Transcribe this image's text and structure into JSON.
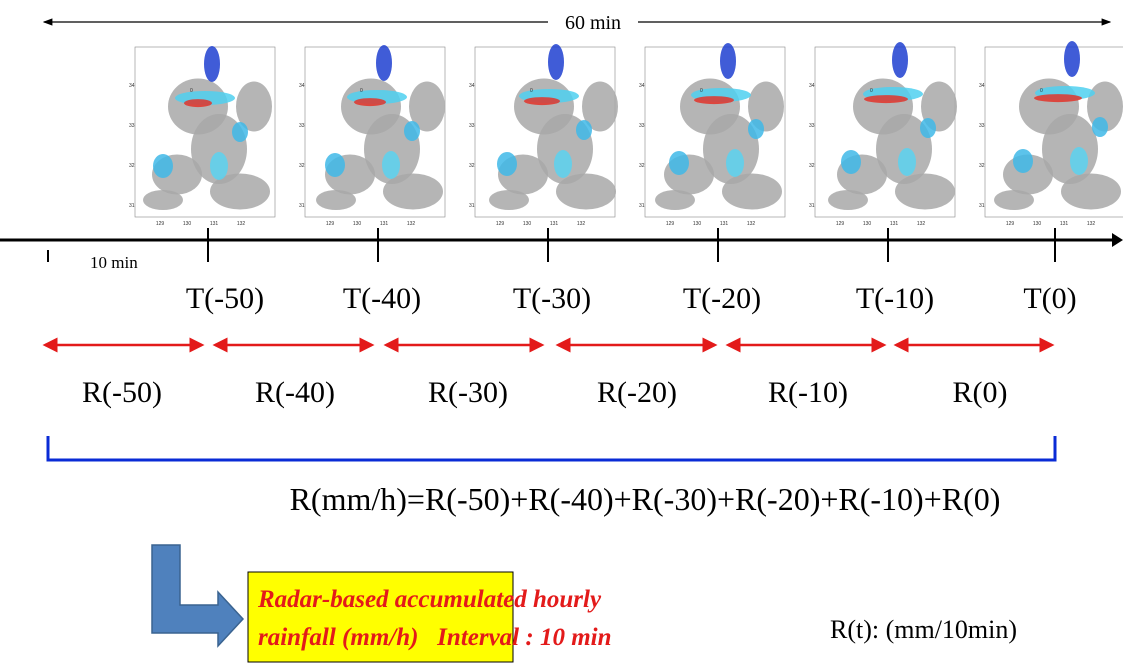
{
  "top_span": "60 min",
  "maps": {
    "lon_labels": [
      "129",
      "130",
      "131",
      "132"
    ],
    "lat_labels": [
      "34",
      "33",
      "32",
      "31"
    ],
    "center_mark": "0"
  },
  "timeline": {
    "step": "10 min",
    "ticks": [
      "T(-50)",
      "T(-40)",
      "T(-30)",
      "T(-20)",
      "T(-10)",
      "T(0)"
    ]
  },
  "intervals": [
    "R(-50)",
    "R(-40)",
    "R(-30)",
    "R(-20)",
    "R(-10)",
    "R(0)"
  ],
  "formula": "R(mm/h)=R(-50)+R(-40)+R(-30)+R(-20)+R(-10)+R(0)",
  "result_box": {
    "lines": [
      "Radar-based accumulated hourly",
      "rainfall (mm/h)   Interval : 10 min"
    ]
  },
  "unit_note": "R(t): (mm/10min)"
}
